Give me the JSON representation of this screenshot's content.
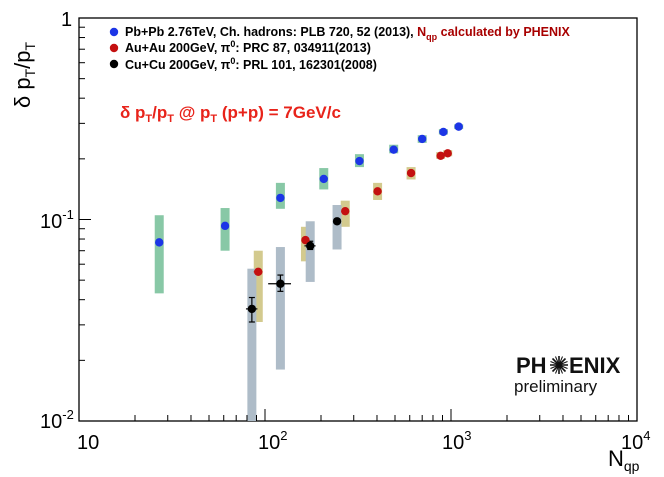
{
  "chart_data": {
    "type": "scatter",
    "xscale": "log",
    "yscale": "log",
    "xlim": [
      10,
      10000
    ],
    "ylim": [
      0.01,
      1
    ],
    "y_axis_title": {
      "main": "δ p",
      "sub1": "T",
      "mid": "/p",
      "sub2": "T"
    },
    "x_axis_title": {
      "main": "N",
      "sub": "qp"
    },
    "x_ticks": [
      {
        "value": 10,
        "base": "10",
        "exp": ""
      },
      {
        "value": 100,
        "base": "10",
        "exp": "2"
      },
      {
        "value": 1000,
        "base": "10",
        "exp": "3"
      },
      {
        "value": 10000,
        "base": "10",
        "exp": "4"
      }
    ],
    "y_ticks": [
      {
        "value": 0.01,
        "base": "10",
        "exp": "-2"
      },
      {
        "value": 0.1,
        "base": "10",
        "exp": "-1"
      },
      {
        "value": 1,
        "base": "1",
        "exp": ""
      }
    ],
    "annotation": {
      "delta": "δ",
      "p1": " p",
      "sub1": "T",
      "slash": "/p",
      "sub2": "T",
      "at": " @ p",
      "sub3": "T",
      "tail": " (p+p) = 7GeV/c"
    },
    "legend": [
      {
        "color": "#1c35e6",
        "text": "Pb+Pb 2.76TeV, Ch. hadrons: PLB 720, 52 (2013), ",
        "red_text": "N",
        "red_sub": "qp",
        "red_tail": " calculated by PHENIX"
      },
      {
        "color": "#c41010",
        "text": "Au+Au 200GeV, π",
        "sup": "0",
        "tail": ": PRC 87, 034911(2013)"
      },
      {
        "color": "#000000",
        "text": "Cu+Cu 200GeV, π",
        "sup": "0",
        "tail": ": PRL 101, 162301(2008)"
      }
    ],
    "series": [
      {
        "name": "Pb+Pb 2.76TeV",
        "color": "#1c35e6",
        "band_color": "#88c8a6",
        "points": [
          {
            "x": 27,
            "y": 0.077,
            "sys_lo": 0.043,
            "sys_hi": 0.105
          },
          {
            "x": 61,
            "y": 0.093,
            "sys_lo": 0.07,
            "sys_hi": 0.114
          },
          {
            "x": 121,
            "y": 0.128,
            "sys_lo": 0.113,
            "sys_hi": 0.152
          },
          {
            "x": 207,
            "y": 0.159,
            "sys_lo": 0.141,
            "sys_hi": 0.18
          },
          {
            "x": 322,
            "y": 0.195,
            "sys_lo": 0.182,
            "sys_hi": 0.211
          },
          {
            "x": 492,
            "y": 0.222,
            "sys_lo": 0.213,
            "sys_hi": 0.235
          },
          {
            "x": 700,
            "y": 0.251,
            "sys_lo": 0.24,
            "sys_hi": 0.262
          },
          {
            "x": 910,
            "y": 0.272,
            "sys_lo": 0.264,
            "sys_hi": 0.281
          },
          {
            "x": 1100,
            "y": 0.289,
            "sys_lo": 0.281,
            "sys_hi": 0.297
          }
        ]
      },
      {
        "name": "Au+Au 200GeV",
        "color": "#c41010",
        "band_color": "#d3ca8e",
        "points": [
          {
            "x": 92,
            "y": 0.055,
            "sys_lo": 0.031,
            "sys_hi": 0.07,
            "xerr": 5
          },
          {
            "x": 165,
            "y": 0.079,
            "sys_lo": 0.062,
            "sys_hi": 0.092
          },
          {
            "x": 270,
            "y": 0.11,
            "sys_lo": 0.092,
            "sys_hi": 0.124
          },
          {
            "x": 403,
            "y": 0.138,
            "sys_lo": 0.125,
            "sys_hi": 0.152
          },
          {
            "x": 610,
            "y": 0.17,
            "sys_lo": 0.158,
            "sys_hi": 0.182
          },
          {
            "x": 880,
            "y": 0.207,
            "sys_lo": 0.2,
            "sys_hi": 0.216
          },
          {
            "x": 960,
            "y": 0.213,
            "sys_lo": 0.206,
            "sys_hi": 0.221
          }
        ]
      },
      {
        "name": "Cu+Cu 200GeV",
        "color": "#000000",
        "band_color": "#aebcc8",
        "points": [
          {
            "x": 85,
            "y": 0.036,
            "sys_lo": 0.01,
            "sys_hi": 0.057,
            "xerr": 6,
            "stat_lo": 0.031,
            "stat_hi": 0.041
          },
          {
            "x": 121,
            "y": 0.048,
            "sys_lo": 0.018,
            "sys_hi": 0.073,
            "xerr": 17,
            "stat_lo": 0.044,
            "stat_hi": 0.053
          },
          {
            "x": 175,
            "y": 0.074,
            "sys_lo": 0.049,
            "sys_hi": 0.098,
            "xerr": 12,
            "stat_lo": 0.071,
            "stat_hi": 0.078
          },
          {
            "x": 244,
            "y": 0.098,
            "sys_lo": 0.071,
            "sys_hi": 0.118
          }
        ]
      }
    ]
  },
  "logo": {
    "part1": "PH",
    "part2": "ENIX",
    "sub": "preliminary"
  }
}
